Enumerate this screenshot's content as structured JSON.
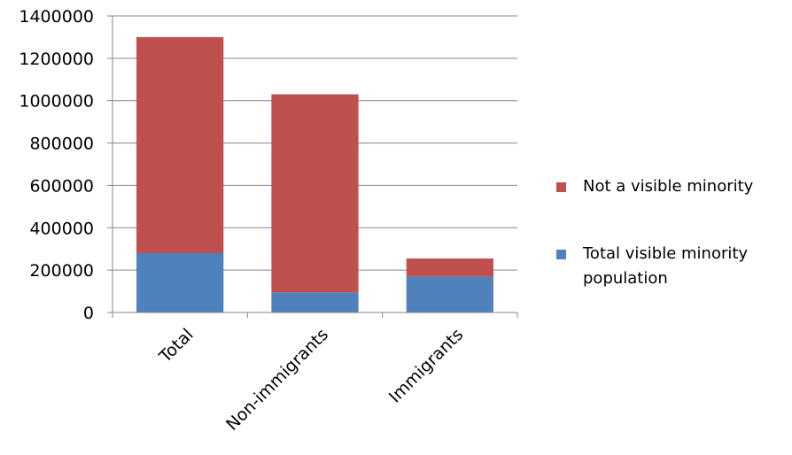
{
  "chart_data": {
    "type": "bar",
    "stacked": true,
    "categories": [
      "Total",
      "Non-immigrants",
      "Immigrants"
    ],
    "series": [
      {
        "name": "Total visible minority population",
        "color": "#4f81bd",
        "values": [
          280000,
          95000,
          170000
        ]
      },
      {
        "name": "Not a visible minority",
        "color": "#c0504d",
        "values": [
          1020000,
          935000,
          85000
        ]
      }
    ],
    "ylim": [
      0,
      1400000
    ],
    "yticks": [
      0,
      200000,
      400000,
      600000,
      800000,
      1000000,
      1200000,
      1400000
    ],
    "grid": true,
    "legend_position": "right",
    "title": "",
    "xlabel": "",
    "ylabel": ""
  }
}
